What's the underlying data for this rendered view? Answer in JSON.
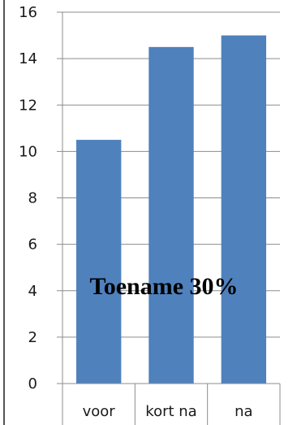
{
  "chart_data": {
    "type": "bar",
    "categories": [
      "voor",
      "kort na",
      "na"
    ],
    "values": [
      10.5,
      14.5,
      15
    ],
    "ylim": [
      0,
      16
    ],
    "yticks": [
      0,
      2,
      4,
      6,
      8,
      10,
      12,
      14,
      16
    ],
    "grid": true,
    "legend": "none",
    "annotation": "Toename 30%",
    "colors": {
      "bar": "#4f81bd",
      "grid": "#8c8c8c",
      "axis": "#8c8c8c",
      "frame": "#555555"
    }
  }
}
